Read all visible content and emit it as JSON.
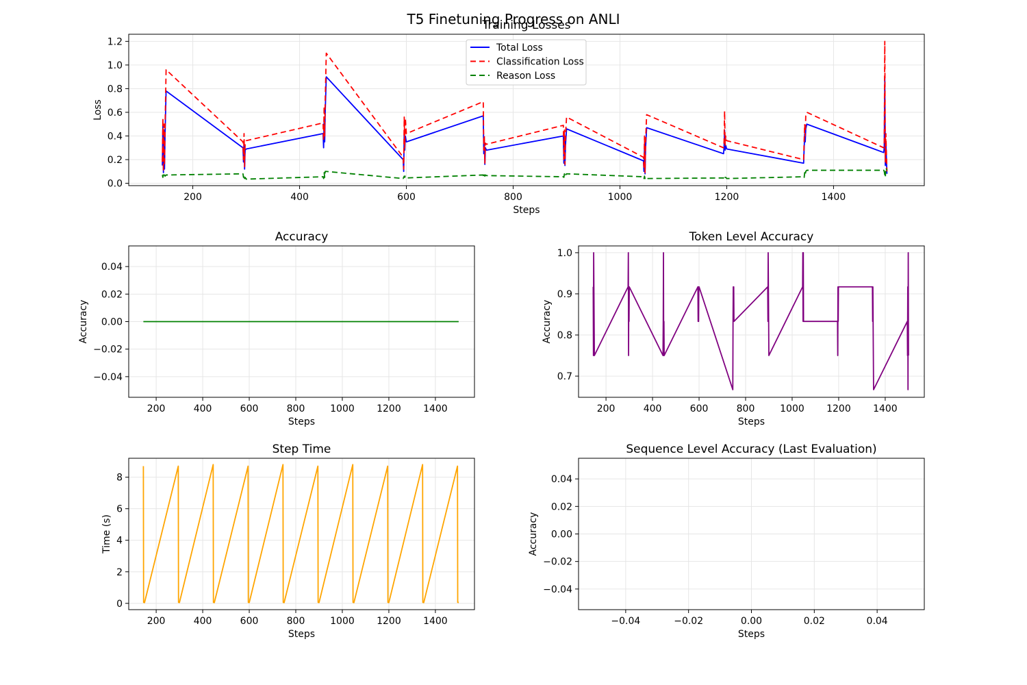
{
  "figure": {
    "suptitle": "T5 Finetuning Progress on ANLI"
  },
  "chart_data": [
    {
      "id": "losses",
      "type": "line",
      "title": "Training Losses",
      "xlabel": "Steps",
      "ylabel": "Loss",
      "xlim": [
        80,
        1570
      ],
      "ylim": [
        -0.02,
        1.26
      ],
      "xticks": [
        200,
        400,
        600,
        800,
        1000,
        1200,
        1400
      ],
      "xtick_labels": [
        "200",
        "400",
        "600",
        "800",
        "1000",
        "1200",
        "1400"
      ],
      "yticks": [
        0.0,
        0.2,
        0.4,
        0.6,
        0.8,
        1.0,
        1.2
      ],
      "ytick_labels": [
        "0.0",
        "0.2",
        "0.4",
        "0.6",
        "0.8",
        "1.0",
        "1.2"
      ],
      "grid": true,
      "legend": "upper center",
      "series": [
        {
          "name": "Total Loss",
          "color": "#0000ff",
          "dash": "solid",
          "x": [
            143,
            144,
            145,
            146,
            147,
            148,
            150,
            294,
            295,
            296,
            297,
            298,
            300,
            444,
            445,
            446,
            447,
            448,
            450,
            594,
            595,
            596,
            597,
            598,
            600,
            744,
            745,
            746,
            747,
            748,
            750,
            894,
            895,
            896,
            897,
            898,
            900,
            1044,
            1045,
            1046,
            1047,
            1048,
            1050,
            1194,
            1195,
            1196,
            1197,
            1198,
            1200,
            1344,
            1345,
            1346,
            1347,
            1348,
            1350,
            1494,
            1495,
            1496,
            1497,
            1498,
            1500
          ],
          "y": [
            0.15,
            0.5,
            0.09,
            0.45,
            0.12,
            0.4,
            0.78,
            0.3,
            0.18,
            0.35,
            0.12,
            0.28,
            0.29,
            0.42,
            0.3,
            0.55,
            0.35,
            0.6,
            0.9,
            0.2,
            0.1,
            0.45,
            0.28,
            0.4,
            0.35,
            0.57,
            0.25,
            0.35,
            0.16,
            0.3,
            0.28,
            0.4,
            0.17,
            0.38,
            0.15,
            0.32,
            0.46,
            0.19,
            0.1,
            0.33,
            0.08,
            0.3,
            0.47,
            0.25,
            0.3,
            0.45,
            0.28,
            0.32,
            0.29,
            0.17,
            0.3,
            0.42,
            0.35,
            0.46,
            0.5,
            0.26,
            0.3,
            0.9,
            0.15,
            0.35,
            0.08
          ]
        },
        {
          "name": "Classification Loss",
          "color": "#ff0000",
          "dash": "8,5",
          "x": [
            143,
            144,
            145,
            146,
            147,
            148,
            150,
            294,
            295,
            296,
            297,
            298,
            300,
            444,
            445,
            446,
            447,
            448,
            450,
            594,
            595,
            596,
            597,
            598,
            600,
            744,
            745,
            746,
            747,
            748,
            750,
            894,
            895,
            896,
            897,
            898,
            900,
            1044,
            1045,
            1046,
            1047,
            1048,
            1050,
            1194,
            1195,
            1196,
            1197,
            1198,
            1200,
            1344,
            1345,
            1346,
            1347,
            1348,
            1350,
            1494,
            1495,
            1496,
            1497,
            1498,
            1500
          ],
          "y": [
            0.18,
            0.55,
            0.1,
            0.5,
            0.15,
            0.45,
            0.96,
            0.35,
            0.2,
            0.42,
            0.14,
            0.33,
            0.36,
            0.51,
            0.36,
            0.65,
            0.4,
            0.7,
            1.1,
            0.22,
            0.12,
            0.56,
            0.3,
            0.55,
            0.42,
            0.69,
            0.28,
            0.4,
            0.17,
            0.34,
            0.33,
            0.49,
            0.2,
            0.45,
            0.16,
            0.4,
            0.56,
            0.22,
            0.12,
            0.4,
            0.09,
            0.35,
            0.58,
            0.3,
            0.35,
            0.61,
            0.32,
            0.4,
            0.36,
            0.2,
            0.36,
            0.5,
            0.4,
            0.57,
            0.6,
            0.3,
            0.35,
            1.2,
            0.18,
            0.42,
            0.1
          ]
        },
        {
          "name": "Reason Loss",
          "color": "#008000",
          "dash": "8,5",
          "x": [
            143,
            144,
            145,
            146,
            147,
            148,
            150,
            294,
            295,
            296,
            297,
            298,
            300,
            444,
            445,
            446,
            447,
            448,
            450,
            594,
            595,
            596,
            597,
            598,
            600,
            744,
            745,
            746,
            747,
            748,
            750,
            894,
            895,
            896,
            897,
            898,
            900,
            1044,
            1045,
            1046,
            1047,
            1048,
            1050,
            1194,
            1195,
            1196,
            1197,
            1198,
            1200,
            1344,
            1345,
            1346,
            1347,
            1348,
            1350,
            1494,
            1495,
            1496,
            1497,
            1498,
            1500
          ],
          "y": [
            0.07,
            0.05,
            0.08,
            0.06,
            0.07,
            0.06,
            0.07,
            0.08,
            0.05,
            0.07,
            0.04,
            0.05,
            0.035,
            0.055,
            0.04,
            0.09,
            0.05,
            0.1,
            0.1,
            0.04,
            0.05,
            0.06,
            0.05,
            0.06,
            0.045,
            0.07,
            0.05,
            0.07,
            0.06,
            0.07,
            0.065,
            0.055,
            0.05,
            0.08,
            0.06,
            0.07,
            0.08,
            0.055,
            0.04,
            0.06,
            0.04,
            0.05,
            0.04,
            0.045,
            0.04,
            0.06,
            0.05,
            0.05,
            0.04,
            0.055,
            0.05,
            0.09,
            0.07,
            0.1,
            0.11,
            0.11,
            0.1,
            0.07,
            0.05,
            0.13,
            0.11
          ]
        }
      ]
    },
    {
      "id": "accuracy",
      "type": "line",
      "title": "Accuracy",
      "xlabel": "Steps",
      "ylabel": "Accuracy",
      "xlim": [
        82,
        1568
      ],
      "ylim": [
        -0.055,
        0.055
      ],
      "xticks": [
        200,
        400,
        600,
        800,
        1000,
        1200,
        1400
      ],
      "xtick_labels": [
        "200",
        "400",
        "600",
        "800",
        "1000",
        "1200",
        "1400"
      ],
      "yticks": [
        -0.04,
        -0.02,
        0.0,
        0.02,
        0.04
      ],
      "ytick_labels": [
        "−0.04",
        "−0.02",
        "0.00",
        "0.02",
        "0.04"
      ],
      "grid": true,
      "series": [
        {
          "color": "#008000",
          "dash": "solid",
          "x": [
            145,
            1500
          ],
          "y": [
            0.0,
            0.0
          ]
        }
      ]
    },
    {
      "id": "token_acc",
      "type": "line",
      "title": "Token Level Accuracy",
      "xlabel": "Steps",
      "ylabel": "Accuracy",
      "xlim": [
        82,
        1568
      ],
      "ylim": [
        0.6485,
        1.0165
      ],
      "xticks": [
        200,
        400,
        600,
        800,
        1000,
        1200,
        1400
      ],
      "xtick_labels": [
        "200",
        "400",
        "600",
        "800",
        "1000",
        "1200",
        "1400"
      ],
      "yticks": [
        0.7,
        0.8,
        0.9,
        1.0
      ],
      "ytick_labels": [
        "0.7",
        "0.8",
        "0.9",
        "1.0"
      ],
      "grid": true,
      "series": [
        {
          "color": "#800080",
          "dash": "solid",
          "x": [
            145,
            146,
            147,
            148,
            149,
            150,
            295,
            296,
            297,
            298,
            299,
            300,
            445,
            446,
            447,
            448,
            449,
            450,
            595,
            596,
            597,
            598,
            599,
            600,
            745,
            746,
            747,
            748,
            749,
            750,
            895,
            896,
            897,
            898,
            899,
            900,
            1045,
            1046,
            1047,
            1048,
            1049,
            1050,
            1195,
            1196,
            1197,
            1198,
            1199,
            1200,
            1345,
            1346,
            1347,
            1348,
            1349,
            1350,
            1495,
            1496,
            1497,
            1498,
            1499,
            1500
          ],
          "y": [
            0.917,
            0.75,
            1.0,
            0.917,
            0.833,
            0.75,
            0.917,
            1.0,
            0.75,
            0.917,
            0.833,
            0.917,
            0.75,
            0.833,
            1.0,
            0.75,
            0.833,
            0.75,
            0.917,
            0.833,
            0.917,
            0.833,
            0.917,
            0.917,
            0.667,
            0.833,
            0.917,
            0.833,
            0.917,
            0.833,
            0.917,
            0.833,
            1.0,
            0.917,
            0.833,
            0.75,
            0.917,
            1.0,
            0.833,
            1.0,
            0.833,
            0.833,
            0.833,
            0.75,
            0.917,
            0.833,
            0.917,
            0.917,
            0.917,
            0.833,
            0.917,
            0.833,
            0.75,
            0.667,
            0.833,
            0.75,
            0.917,
            0.667,
            1.0,
            0.75
          ]
        }
      ]
    },
    {
      "id": "step_time",
      "type": "line",
      "title": "Step Time",
      "xlabel": "Steps",
      "ylabel": "Time (s)",
      "xlim": [
        82,
        1568
      ],
      "ylim": [
        -0.4,
        9.2
      ],
      "xticks": [
        200,
        400,
        600,
        800,
        1000,
        1200,
        1400
      ],
      "xtick_labels": [
        "200",
        "400",
        "600",
        "800",
        "1000",
        "1200",
        "1400"
      ],
      "yticks": [
        0,
        2,
        4,
        6,
        8
      ],
      "ytick_labels": [
        "0",
        "2",
        "4",
        "6",
        "8"
      ],
      "grid": true,
      "series": [
        {
          "color": "#ffa500",
          "dash": "solid",
          "x": [
            145,
            146,
            147,
            148,
            149,
            150,
            295,
            296,
            297,
            298,
            299,
            300,
            445,
            446,
            447,
            448,
            449,
            450,
            595,
            596,
            597,
            598,
            599,
            600,
            745,
            746,
            747,
            748,
            749,
            750,
            895,
            896,
            897,
            898,
            899,
            900,
            1045,
            1046,
            1047,
            1048,
            1049,
            1050,
            1195,
            1196,
            1197,
            1198,
            1199,
            1200,
            1345,
            1346,
            1347,
            1348,
            1349,
            1350,
            1495,
            1496,
            1497,
            1498,
            1499,
            1500
          ],
          "y": [
            8.7,
            0.06,
            0.07,
            0.05,
            0.06,
            0.05,
            8.7,
            0.06,
            0.07,
            0.05,
            0.06,
            0.05,
            8.8,
            0.06,
            0.07,
            0.05,
            0.06,
            0.05,
            8.7,
            0.06,
            0.07,
            0.05,
            0.06,
            0.05,
            8.8,
            0.06,
            0.07,
            0.05,
            0.06,
            0.05,
            8.7,
            0.06,
            0.07,
            0.05,
            0.06,
            0.05,
            8.8,
            0.06,
            0.07,
            0.05,
            0.06,
            0.05,
            8.7,
            0.06,
            0.07,
            0.05,
            0.06,
            0.05,
            8.8,
            0.06,
            0.07,
            0.05,
            0.06,
            0.05,
            8.7,
            0.06,
            0.07,
            0.05,
            0.06,
            0.05
          ]
        }
      ]
    },
    {
      "id": "seq_acc",
      "type": "line",
      "title": "Sequence Level Accuracy (Last Evaluation)",
      "xlabel": "Steps",
      "ylabel": "Accuracy",
      "xlim": [
        -0.055,
        0.055
      ],
      "ylim": [
        -0.055,
        0.055
      ],
      "xticks": [
        -0.04,
        -0.02,
        0.0,
        0.02,
        0.04
      ],
      "xtick_labels": [
        "−0.04",
        "−0.02",
        "0.00",
        "0.02",
        "0.04"
      ],
      "yticks": [
        -0.04,
        -0.02,
        0.0,
        0.02,
        0.04
      ],
      "ytick_labels": [
        "−0.04",
        "−0.02",
        "0.00",
        "0.02",
        "0.04"
      ],
      "grid": true,
      "series": []
    }
  ]
}
